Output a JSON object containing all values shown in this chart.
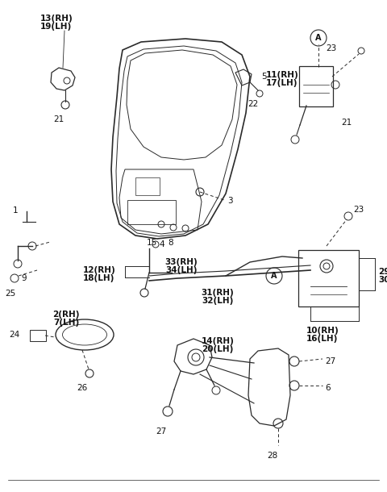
{
  "bg_color": "#ffffff",
  "line_color": "#2a2a2a",
  "text_color": "#111111",
  "fig_w": 4.8,
  "fig_h": 6.1,
  "dpi": 100,
  "xlim": [
    0,
    480
  ],
  "ylim": [
    0,
    610
  ]
}
